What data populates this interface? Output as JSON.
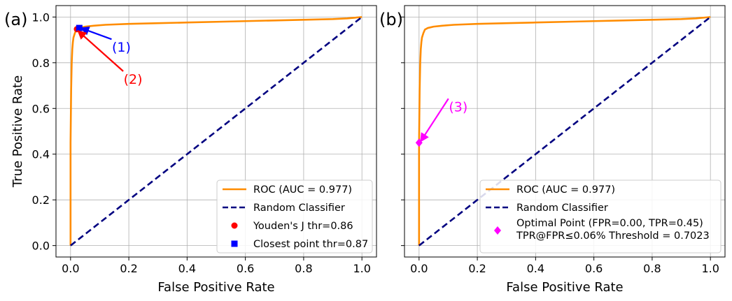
{
  "chart_data": [
    {
      "type": "line",
      "panel_label": "(a)",
      "xlabel": "False Positive Rate",
      "ylabel": "True Positive Rate",
      "xlim": [
        -0.05,
        1.05
      ],
      "ylim": [
        -0.05,
        1.05
      ],
      "xticks": [
        "0.0",
        "0.2",
        "0.4",
        "0.6",
        "0.8",
        "1.0"
      ],
      "yticks": [
        "0.0",
        "0.2",
        "0.4",
        "0.6",
        "0.8",
        "1.0"
      ],
      "grid": true,
      "legend_position": "bottom-right",
      "series": [
        {
          "name": "ROC (AUC = 0.977)",
          "style": "solid",
          "color": "#ff8c00",
          "x": [
            0.0,
            0.0,
            0.002,
            0.004,
            0.006,
            0.008,
            0.01,
            0.015,
            0.02,
            0.03,
            0.05,
            0.08,
            0.12,
            0.2,
            0.3,
            0.4,
            0.5,
            0.6,
            0.7,
            0.8,
            0.9,
            0.95,
            1.0
          ],
          "y": [
            0.0,
            0.45,
            0.68,
            0.8,
            0.86,
            0.89,
            0.91,
            0.93,
            0.945,
            0.952,
            0.958,
            0.962,
            0.966,
            0.97,
            0.973,
            0.976,
            0.979,
            0.982,
            0.985,
            0.988,
            0.991,
            0.994,
            1.0
          ]
        },
        {
          "name": "Random Classifier",
          "style": "dashed",
          "color": "#000080",
          "x": [
            0.0,
            1.0
          ],
          "y": [
            0.0,
            1.0
          ]
        }
      ],
      "points": [
        {
          "name": "Youden's J thr=0.86",
          "marker": "circle",
          "color": "#ff0000",
          "x": 0.022,
          "y": 0.947
        },
        {
          "name": "Closest point thr=0.87",
          "marker": "square",
          "color": "#0000ff",
          "x": 0.03,
          "y": 0.952
        }
      ],
      "annotations": [
        {
          "text": "(1)",
          "color": "#0000ff",
          "x": 0.16,
          "y": 0.86,
          "target_x": 0.035,
          "target_y": 0.952
        },
        {
          "text": "(2)",
          "color": "#ff0000",
          "x": 0.2,
          "y": 0.72,
          "target_x": 0.025,
          "target_y": 0.94
        }
      ]
    },
    {
      "type": "line",
      "panel_label": "(b)",
      "xlabel": "False Positive Rate",
      "ylabel": "",
      "xlim": [
        -0.05,
        1.05
      ],
      "ylim": [
        -0.05,
        1.05
      ],
      "xticks": [
        "0.0",
        "0.2",
        "0.4",
        "0.6",
        "0.8",
        "1.0"
      ],
      "yticks": [],
      "grid": true,
      "legend_position": "bottom-right",
      "series": [
        {
          "name": "ROC (AUC = 0.977)",
          "style": "solid",
          "color": "#ff8c00",
          "x": [
            0.0,
            0.0,
            0.002,
            0.004,
            0.006,
            0.008,
            0.01,
            0.015,
            0.02,
            0.03,
            0.05,
            0.08,
            0.12,
            0.2,
            0.3,
            0.4,
            0.5,
            0.6,
            0.7,
            0.8,
            0.9,
            0.95,
            1.0
          ],
          "y": [
            0.0,
            0.45,
            0.68,
            0.8,
            0.86,
            0.89,
            0.91,
            0.93,
            0.945,
            0.952,
            0.958,
            0.962,
            0.966,
            0.97,
            0.973,
            0.976,
            0.979,
            0.982,
            0.985,
            0.988,
            0.991,
            0.994,
            1.0
          ]
        },
        {
          "name": "Random Classifier",
          "style": "dashed",
          "color": "#000080",
          "x": [
            0.0,
            1.0
          ],
          "y": [
            0.0,
            1.0
          ]
        }
      ],
      "points": [
        {
          "name": "Optimal Point (FPR=0.00, TPR=0.45)",
          "name_line2": "TPR@FPR≤0.06% Threshold = 0.7023",
          "marker": "diamond",
          "color": "#ff00ff",
          "x": 0.0,
          "y": 0.45
        }
      ],
      "annotations": [
        {
          "text": "(3)",
          "color": "#ff00ff",
          "x": 0.12,
          "y": 0.6,
          "target_x": 0.005,
          "target_y": 0.455
        }
      ]
    }
  ]
}
